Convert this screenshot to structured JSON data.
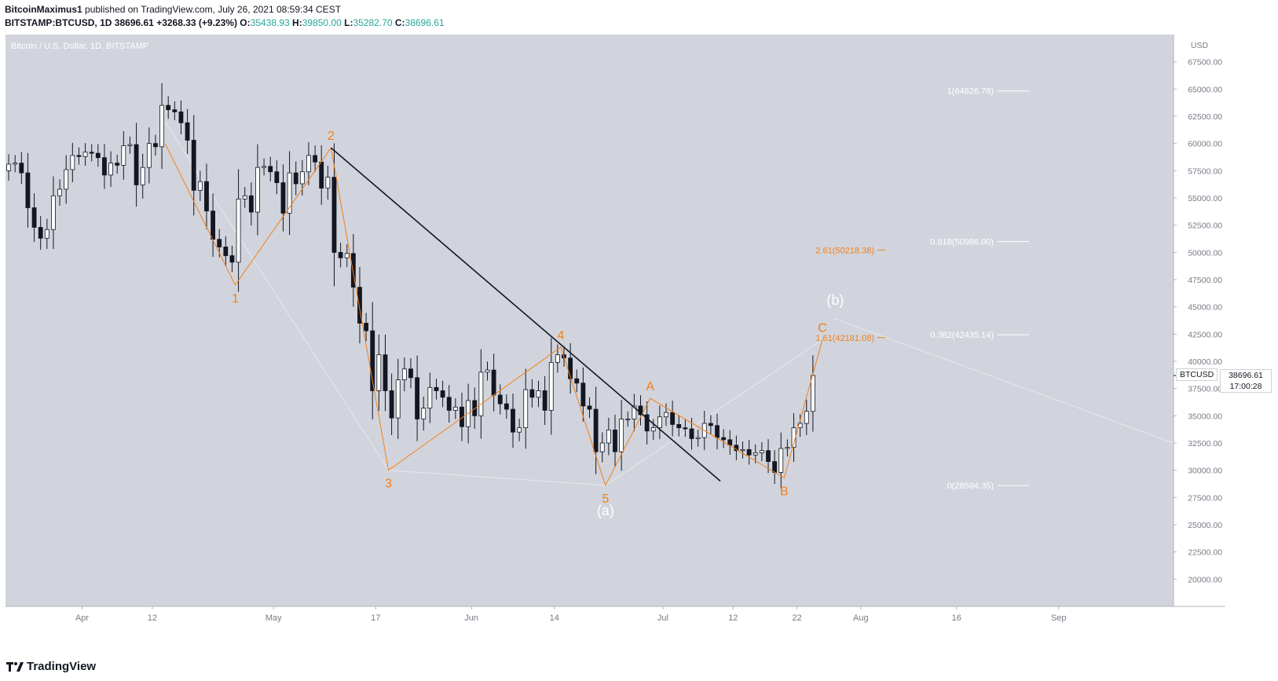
{
  "header": {
    "line1_user": "BitcoinMaximus1",
    "line1_rest": " published on TradingView.com, July 26, 2021 08:59:34 CEST",
    "symbol": "BITSTAMP:BTCUSD, 1D",
    "last": "38696.61",
    "change": "+3268.33 (+9.23%)",
    "o_label": "O:",
    "o": "35438.93",
    "h_label": "H:",
    "h": "39850.00",
    "l_label": "L:",
    "l": "35282.70",
    "c_label": "C:",
    "c": "38696.61"
  },
  "footer": {
    "brand": "TradingView"
  },
  "price_tag": {
    "symbol": "BTCUSD",
    "price": "38696.61",
    "countdown": "17:00:28"
  },
  "colors": {
    "plot_bg": "#d1d4dc",
    "up": "#ffffff",
    "down": "#131722",
    "orange": "#f57f17",
    "white_label": "#ffffff",
    "trend": "#131722"
  },
  "chart_data": {
    "type": "candlestick",
    "title": "Bitcoin / U.S. Dollar, 1D, BITSTAMP",
    "currency_label": "USD",
    "ylim": [
      17500,
      70000
    ],
    "yticks": [
      20000,
      22500,
      25000,
      27500,
      30000,
      32500,
      35000,
      37500,
      40000,
      42500,
      45000,
      47500,
      50000,
      52500,
      55000,
      57500,
      60000,
      62500,
      65000,
      67500
    ],
    "start_date": "2021-03-20",
    "end_date": "2021-09-19",
    "xticks": [
      {
        "label": "Apr",
        "date": "2021-04-01"
      },
      {
        "label": "12",
        "date": "2021-04-12"
      },
      {
        "label": "May",
        "date": "2021-05-01"
      },
      {
        "label": "17",
        "date": "2021-05-17"
      },
      {
        "label": "Jun",
        "date": "2021-06-01"
      },
      {
        "label": "14",
        "date": "2021-06-14"
      },
      {
        "label": "Jul",
        "date": "2021-07-01"
      },
      {
        "label": "12",
        "date": "2021-07-12"
      },
      {
        "label": "22",
        "date": "2021-07-22"
      },
      {
        "label": "Aug",
        "date": "2021-08-01"
      },
      {
        "label": "16",
        "date": "2021-08-16"
      },
      {
        "label": "Sep",
        "date": "2021-09-01"
      }
    ],
    "closes": [
      58100,
      58200,
      57300,
      54100,
      52300,
      51300,
      52100,
      55200,
      55800,
      57600,
      58900,
      58800,
      59200,
      59100,
      58700,
      57100,
      58200,
      58000,
      59800,
      59900,
      56200,
      57800,
      60000,
      59700,
      63500,
      63100,
      62900,
      61900,
      60300,
      55700,
      56500,
      53800,
      51200,
      50500,
      49700,
      49100,
      54900,
      55200,
      53700,
      57800,
      57900,
      57400,
      56400,
      53600,
      57300,
      56300,
      57400,
      58900,
      58300,
      55900,
      56900,
      50000,
      49500,
      49900,
      46800,
      43500,
      42800,
      37300,
      40600,
      37300,
      34800,
      38300,
      39300,
      38500,
      34700,
      35700,
      37600,
      37300,
      36700,
      35500,
      35800,
      34000,
      36400,
      35000,
      39000,
      39200,
      36900,
      36100,
      35600,
      33500,
      33900,
      37400,
      36700,
      37300,
      35500,
      39900,
      40600,
      40300,
      38400,
      38000,
      35900,
      35600,
      31700,
      32500,
      33700,
      31700,
      34700,
      34700,
      35900,
      35100,
      33600,
      33900,
      34900,
      35300,
      34200,
      33900,
      33800,
      32900,
      33000,
      34300,
      34100,
      33000,
      32800,
      32300,
      31800,
      31900,
      31400,
      31600,
      31800,
      30800,
      29800,
      32000,
      32100,
      33900,
      34300,
      35400,
      38700
    ],
    "candles_from": 0,
    "last_price": 38696.61,
    "fib_levels": [
      {
        "label": "1(64826.78)",
        "value": 64826.78
      },
      {
        "label": "0.618(50986.00)",
        "value": 50986.0
      },
      {
        "label": "0.382(42435.14)",
        "value": 42435.14
      },
      {
        "label": "0(28594.35)",
        "value": 28594.35
      }
    ],
    "ext_levels": [
      {
        "label": "2.61(50218.38)",
        "value": 50218.38
      },
      {
        "label": "1.61(42181.08)",
        "value": 42181.08
      }
    ],
    "wave_points": [
      {
        "label": "1",
        "date": "2021-04-25",
        "value": 47000
      },
      {
        "label": "2",
        "date": "2021-05-10",
        "value": 59600
      },
      {
        "label": "3",
        "date": "2021-05-19",
        "value": 30000
      },
      {
        "label": "4",
        "date": "2021-06-15",
        "value": 41300
      },
      {
        "label": "5",
        "date": "2021-06-22",
        "value": 28600
      },
      {
        "label": "A",
        "date": "2021-06-29",
        "value": 36600
      },
      {
        "label": "B",
        "date": "2021-07-20",
        "value": 29300
      },
      {
        "label": "C",
        "date": "2021-07-26",
        "value": 42000
      }
    ],
    "major_labels": [
      {
        "label": "(a)",
        "date": "2021-06-22",
        "value": 28600
      },
      {
        "label": "(b)",
        "date": "2021-07-28",
        "value": 43900
      }
    ],
    "trendline": [
      {
        "date": "2021-05-10",
        "value": 59600
      },
      {
        "date": "2021-07-10",
        "value": 29000
      }
    ]
  }
}
